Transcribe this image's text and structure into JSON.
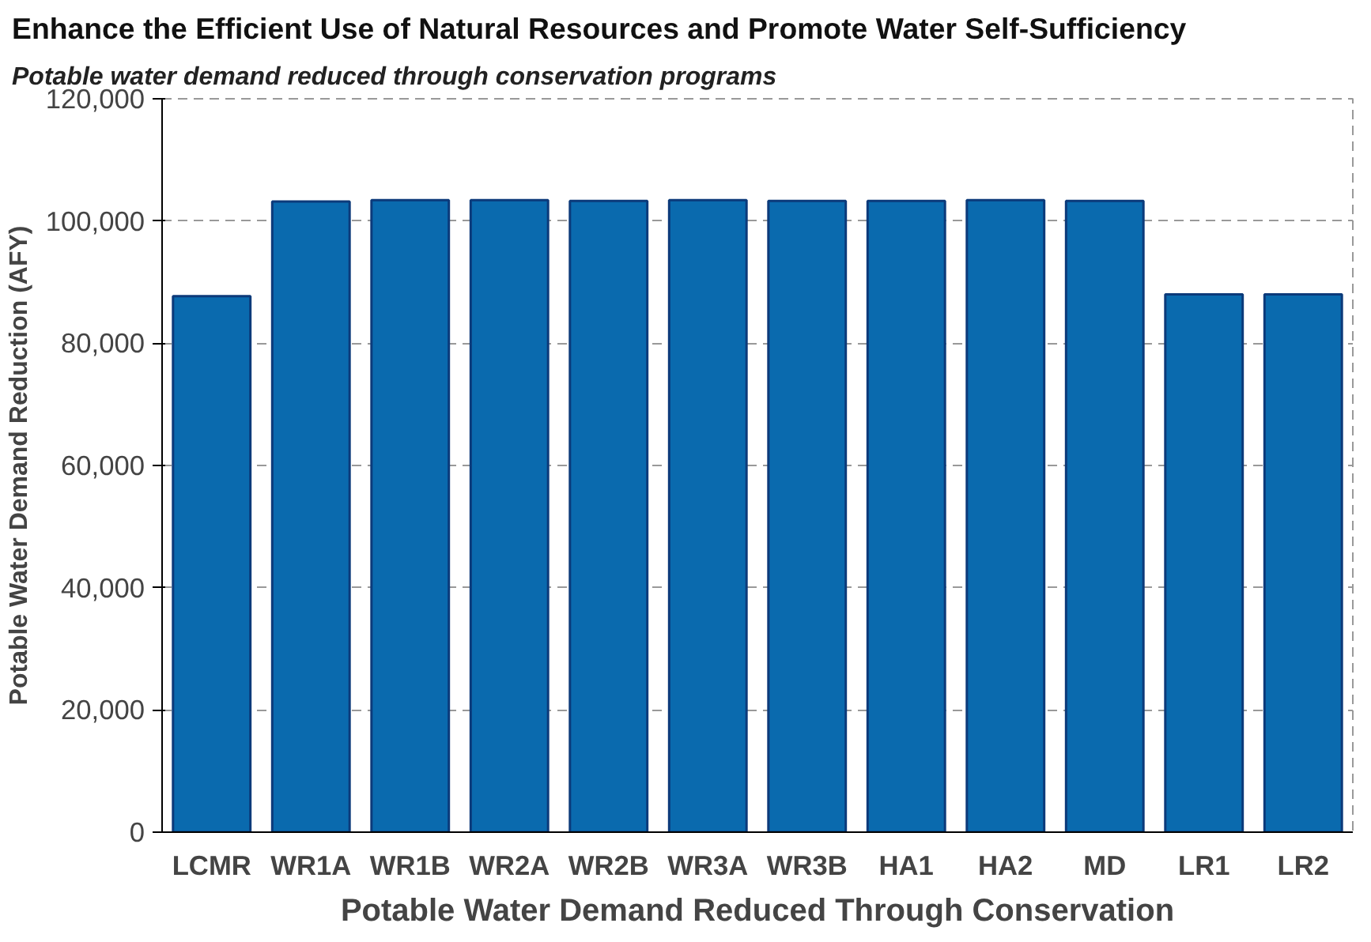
{
  "chart_data": {
    "type": "bar",
    "title": "Enhance the Efficient Use of Natural Resources and Promote Water Self-Sufficiency",
    "subtitle": "Potable water demand reduced through conservation programs",
    "xlabel": "Potable Water Demand Reduced Through Conservation",
    "ylabel": "Potable Water Demand Reduction (AFY)",
    "categories": [
      "LCMR",
      "WR1A",
      "WR1B",
      "WR2A",
      "WR2B",
      "WR3A",
      "WR3B",
      "HA1",
      "HA2",
      "MD",
      "LR1",
      "LR2"
    ],
    "values": [
      87700,
      103200,
      103400,
      103400,
      103300,
      103400,
      103300,
      103300,
      103400,
      103300,
      88000,
      88000
    ],
    "color": "#0a6aae",
    "ylim": [
      0,
      120000
    ],
    "yticks": [
      {
        "value": 0,
        "label": "0"
      },
      {
        "value": 20000,
        "label": "20,000"
      },
      {
        "value": 40000,
        "label": "40,000"
      },
      {
        "value": 60000,
        "label": "60,000"
      },
      {
        "value": 80000,
        "label": "80,000"
      },
      {
        "value": 100000,
        "label": "100,000"
      },
      {
        "value": 120000,
        "label": "120,000"
      }
    ],
    "grid": "y"
  }
}
